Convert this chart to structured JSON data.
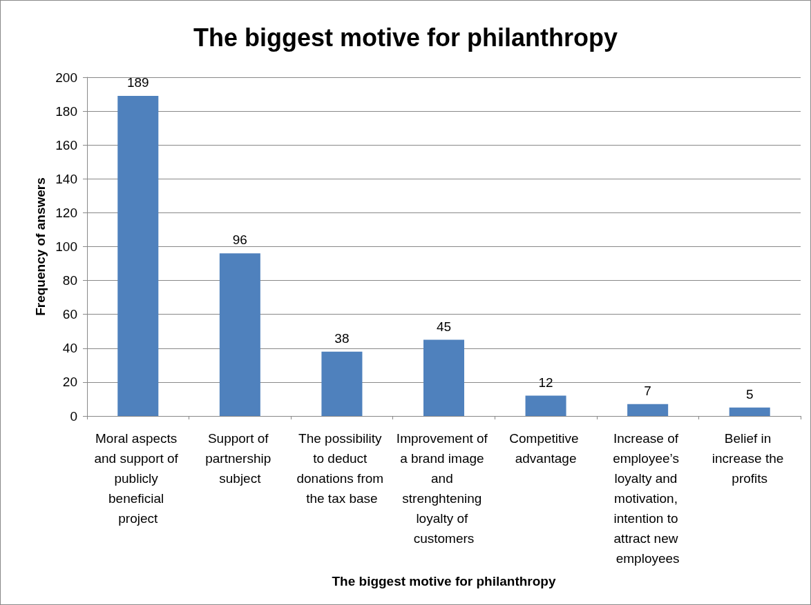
{
  "chart_data": {
    "type": "bar",
    "title": "The biggest motive for philanthropy",
    "xlabel": "The biggest motive for philanthropy",
    "ylabel": "Frequency of answers",
    "categories": [
      "Moral aspects and support of publicly beneficial project",
      "Support of partnership subject",
      "The possibility to deduct donations from the tax base",
      "Improvement of a brand image and strenghtening loyalty of customers",
      "Competitive advantage",
      "Increase of employee’s loyalty and motivation, intention to attract new employees",
      "Belief in increase the profits"
    ],
    "values": [
      189,
      96,
      38,
      45,
      12,
      7,
      5
    ],
    "color": "#4f81bd",
    "ylim": [
      0,
      200
    ],
    "yticks": [
      0,
      20,
      40,
      60,
      80,
      100,
      120,
      140,
      160,
      180,
      200
    ],
    "grid": "y",
    "data_labels": true
  }
}
